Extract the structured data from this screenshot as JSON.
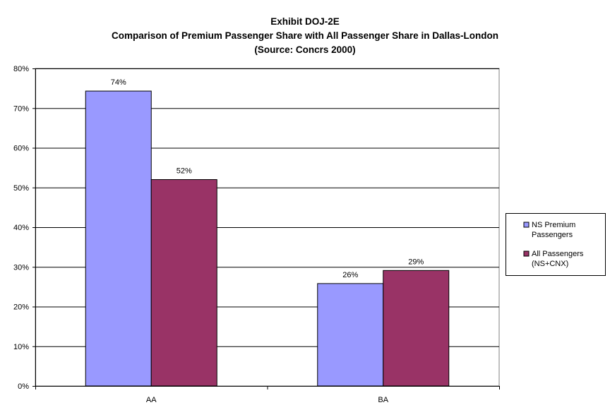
{
  "chart_data": {
    "type": "bar",
    "title": [
      "Exhibit DOJ-2E",
      "Comparison of Premium Passenger Share with All Passenger Share in Dallas-London",
      "(Source: Concrs 2000)"
    ],
    "categories": [
      "AA",
      "BA"
    ],
    "series": [
      {
        "name": [
          "NS Premium",
          "Passengers"
        ],
        "values": [
          74.3,
          25.8
        ],
        "labels": [
          "74%",
          "26%"
        ],
        "color": "#9999ff"
      },
      {
        "name": [
          "All Passengers",
          "(NS+CNX)"
        ],
        "values": [
          52.0,
          29.1
        ],
        "labels": [
          "52%",
          "29%"
        ],
        "color": "#993366"
      }
    ],
    "ylim": [
      0,
      80
    ],
    "y_ticks": [
      0,
      10,
      20,
      30,
      40,
      50,
      60,
      70,
      80
    ],
    "y_tick_labels": [
      "0%",
      "10%",
      "20%",
      "30%",
      "40%",
      "50%",
      "60%",
      "70%",
      "80%"
    ],
    "grid": true,
    "legend_position": "right",
    "xlabel": "",
    "ylabel": ""
  }
}
